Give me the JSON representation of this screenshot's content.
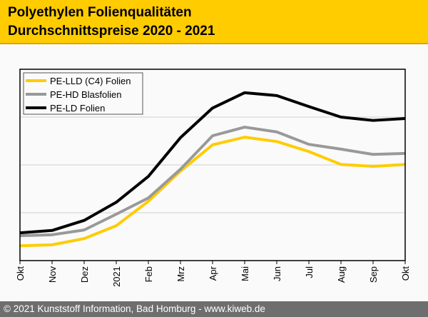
{
  "header": {
    "title_line1": "Polyethylen Folienqualitäten",
    "title_line2": "Durchschnittspreise 2020 - 2021"
  },
  "footer": {
    "text": "© 2021 Kunststoff Information, Bad Homburg - www.kiweb.de"
  },
  "colors": {
    "header_bg": "#ffcc00",
    "footer_bg": "#6e6e6e"
  },
  "chart_data": {
    "type": "line",
    "categories": [
      "Okt",
      "Nov",
      "Dez",
      "2021",
      "Feb",
      "Mrz",
      "Apr",
      "Mai",
      "Jun",
      "Jul",
      "Aug",
      "Sep",
      "Okt"
    ],
    "ylim": [
      0,
      4
    ],
    "y_tick_labels": "none",
    "grid": "horizontal",
    "legend_position": "top-left",
    "series": [
      {
        "name": "PE-LLD (C4) Folien",
        "color": "#ffcc00",
        "values": [
          0.31,
          0.33,
          0.46,
          0.73,
          1.24,
          1.87,
          2.42,
          2.58,
          2.49,
          2.28,
          2.01,
          1.97,
          2.01
        ]
      },
      {
        "name": "PE-HD Blasfolien",
        "color": "#999999",
        "values": [
          0.52,
          0.54,
          0.64,
          0.97,
          1.31,
          1.91,
          2.61,
          2.79,
          2.69,
          2.43,
          2.33,
          2.22,
          2.24
        ]
      },
      {
        "name": "PE-LD Folien",
        "color": "#000000",
        "values": [
          0.58,
          0.63,
          0.84,
          1.22,
          1.76,
          2.57,
          3.19,
          3.51,
          3.45,
          3.22,
          3.0,
          2.93,
          2.97
        ]
      }
    ]
  }
}
